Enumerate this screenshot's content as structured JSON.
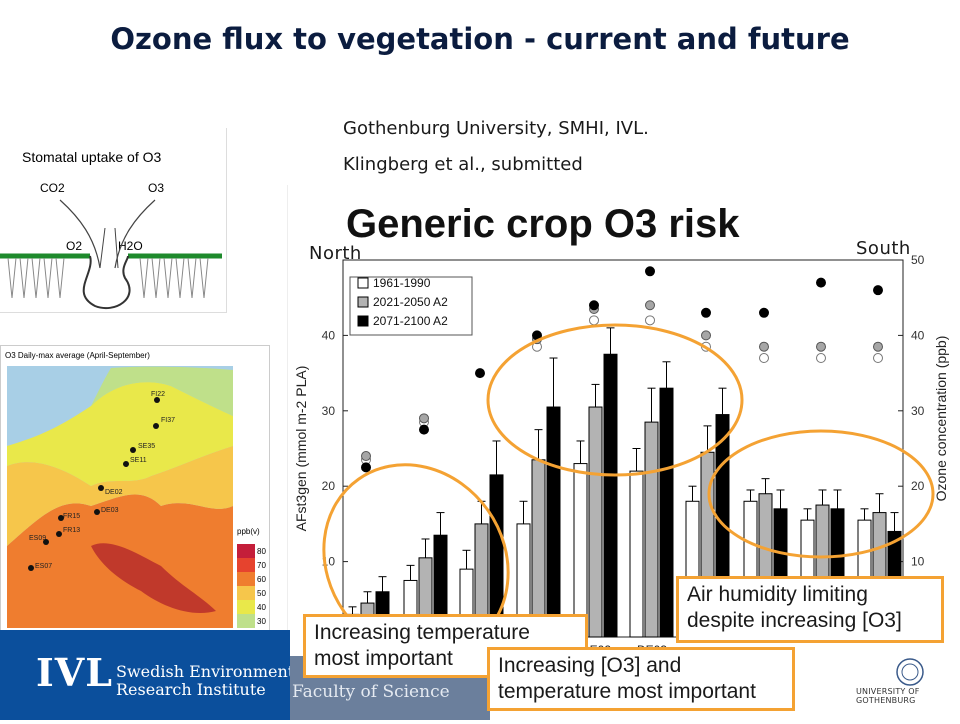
{
  "header": {
    "title": "Ozone flux to vegetation -  current and future",
    "credit_line1": "Gothenburg University, SMHI, IVL.",
    "credit_line2": "Klingberg et al., submitted"
  },
  "stomata_diagram": {
    "title": "Stomatal uptake of O3",
    "co2": "CO2",
    "o3": "O3",
    "o2": "O2",
    "h2o": "H2O"
  },
  "ozone_map": {
    "title": "O3 Daily-max average (April-September)",
    "legend_unit": "ppb(v)",
    "legend_levels": [
      "80",
      "70",
      "60",
      "50",
      "40",
      "30"
    ],
    "legend_colors": [
      "#c41e3a",
      "#e6432e",
      "#ef7d2f",
      "#f6c64b",
      "#e9e84a",
      "#bfe08a"
    ],
    "sites": [
      "FI22",
      "FI37",
      "SE35",
      "SE11",
      "DE02",
      "DE03",
      "FR15",
      "FR13",
      "ES09",
      "ES07"
    ]
  },
  "chart_data": {
    "type": "bar",
    "title": "Generic crop O3 risk",
    "ylabel": "AFst3gen (mmol m-2 PLA)",
    "y2label": "Ozone concentration (ppb)",
    "ylim": [
      0,
      50
    ],
    "y_ticks": [
      0,
      10,
      20,
      30,
      40
    ],
    "y2_ticks": [
      10,
      20,
      30,
      40,
      50
    ],
    "x_tick_labels": [
      "",
      "",
      "",
      "",
      "DE02",
      "DE03",
      "",
      "",
      "",
      ""
    ],
    "legend": [
      "1961-1990",
      "2021-2050 A2",
      "2071-2100 A2"
    ],
    "legend_position": "top-left",
    "series": [
      {
        "name": "1961-1990",
        "color": "#ffffff",
        "values": [
          3,
          7.5,
          9,
          15,
          23,
          22,
          18,
          18,
          15.5,
          15.5
        ],
        "errors": [
          1,
          2,
          2.5,
          3,
          3,
          3,
          2,
          1.5,
          1.5,
          1.5
        ]
      },
      {
        "name": "2021-2050 A2",
        "color": "#b3b3b3",
        "values": [
          4.5,
          10.5,
          15,
          23.5,
          30.5,
          28.5,
          24.5,
          19,
          17.5,
          16.5
        ],
        "errors": [
          1.5,
          2.5,
          3,
          4,
          3,
          4.5,
          3.5,
          2,
          2,
          2.5
        ]
      },
      {
        "name": "2071-2100 A2",
        "color": "#000000",
        "values": [
          6,
          13.5,
          21.5,
          30.5,
          37.5,
          33,
          29.5,
          17,
          17,
          14
        ],
        "errors": [
          2,
          3,
          4.5,
          6.5,
          3.5,
          3.5,
          3.5,
          2.5,
          2.5,
          2.5
        ]
      }
    ],
    "ozone_points": [
      {
        "series": "1961-1990",
        "values": [
          23.5,
          28.5,
          null,
          38.5,
          42,
          42,
          38.5,
          37,
          37,
          37
        ]
      },
      {
        "series": "2021-2050 A2",
        "values": [
          24,
          29,
          null,
          39.5,
          43.5,
          44,
          40,
          38.5,
          38.5,
          38.5
        ]
      },
      {
        "series": "2071-2100 A2",
        "values": [
          22.5,
          27.5,
          35,
          40,
          44,
          48.5,
          43,
          43,
          47,
          46
        ]
      }
    ]
  },
  "annotations": {
    "north": "North",
    "south": "South",
    "callout_temperature": "Increasing temperature most important",
    "callout_ozone": "Increasing [O3] and temperature most important",
    "callout_humidity": "Air humidity limiting despite increasing [O3]"
  },
  "footer": {
    "ivl_logo": "IVL",
    "ivl_line1": "Swedish Environmental",
    "ivl_line2": "Research Institute",
    "faculty": "Faculty of Science",
    "university": "UNIVERSITY OF GOTHENBURG"
  },
  "colors": {
    "highlight_orange": "#f4a233",
    "ivl_blue": "#0b4f9c",
    "title_navy": "#0b1c3f"
  }
}
